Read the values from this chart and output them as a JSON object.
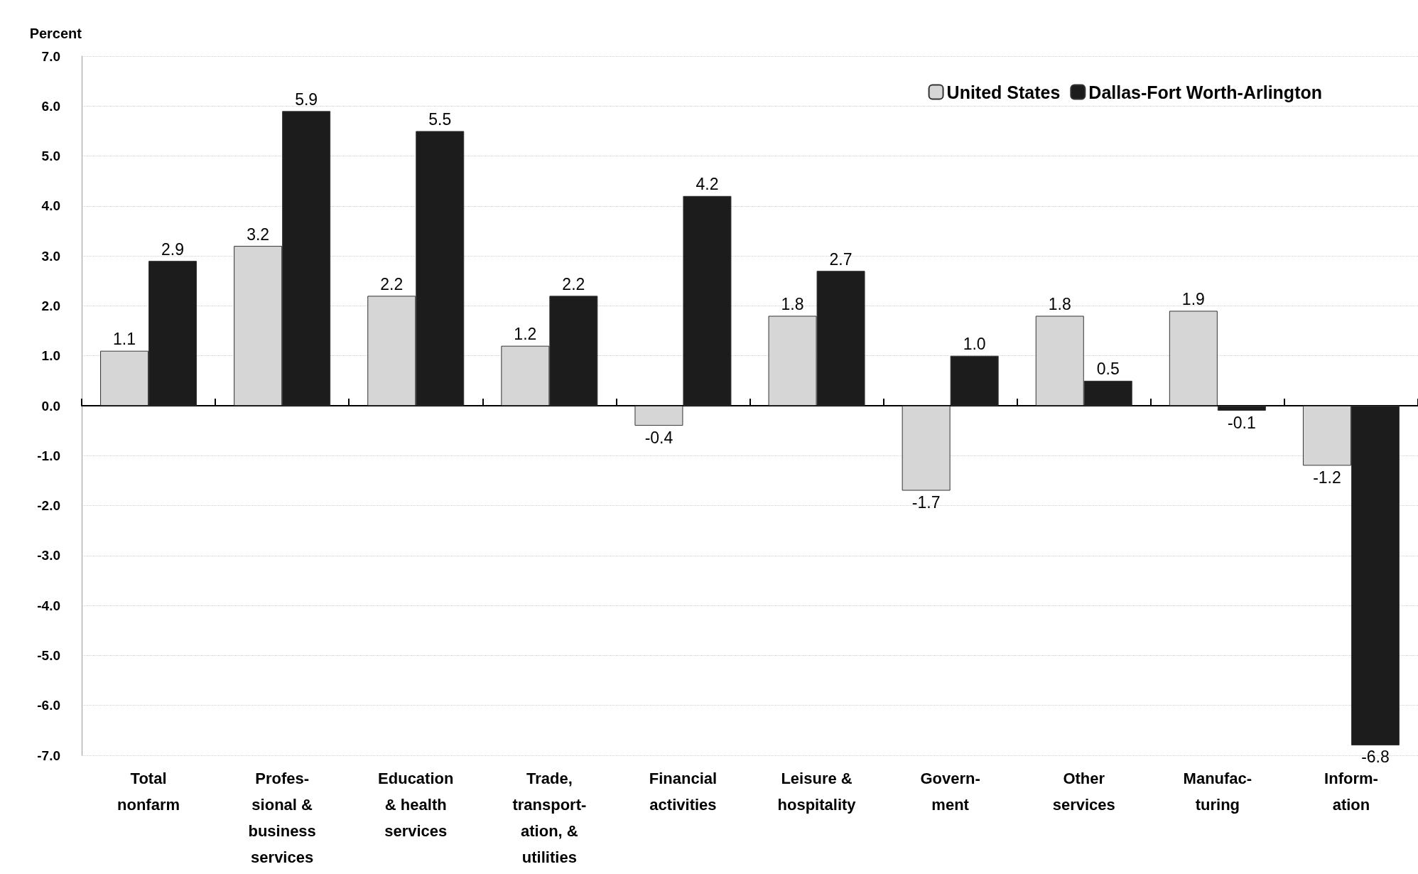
{
  "chart_data": {
    "type": "bar",
    "ylabel": "Percent",
    "categories": [
      "Total\nnonfarm",
      "Profes-\nsional &\nbusiness\nservices",
      "Education\n& health\nservices",
      "Trade,\ntransport-\nation, &\nutilities",
      "Financial\nactivities",
      "Leisure &\nhospitality",
      "Govern-\nment",
      "Other\nservices",
      "Manufac-\nturing",
      "Inform-\nation"
    ],
    "series": [
      {
        "name": "United States",
        "color": "#d6d6d6",
        "values": [
          1.1,
          3.2,
          2.2,
          1.2,
          -0.4,
          1.8,
          -1.7,
          1.8,
          1.9,
          -1.2
        ],
        "value_labels": [
          "1.1",
          "3.2",
          "2.2",
          "1.2",
          "-0.4",
          "1.8",
          "-1.7",
          "1.8",
          "1.9",
          "-1.2"
        ]
      },
      {
        "name": "Dallas-Fort Worth-Arlington",
        "color": "#1c1c1c",
        "values": [
          2.9,
          5.9,
          5.5,
          2.2,
          4.2,
          2.7,
          1.0,
          0.5,
          -0.1,
          -6.8
        ],
        "value_labels": [
          "2.9",
          "5.9",
          "5.5",
          "2.2",
          "4.2",
          "2.7",
          "1.0",
          "0.5",
          "-0.1",
          "-6.8"
        ]
      }
    ],
    "ylim": [
      -7,
      7
    ],
    "yticks": [
      {
        "value": -7,
        "label": "-7.0"
      },
      {
        "value": -6,
        "label": "-6.0"
      },
      {
        "value": -5,
        "label": "-5.0"
      },
      {
        "value": -4,
        "label": "-4.0"
      },
      {
        "value": -3,
        "label": "-3.0"
      },
      {
        "value": -2,
        "label": "-2.0"
      },
      {
        "value": -1,
        "label": "-1.0"
      },
      {
        "value": 0,
        "label": "0.0"
      },
      {
        "value": 1,
        "label": "1.0"
      },
      {
        "value": 2,
        "label": "2.0"
      },
      {
        "value": 3,
        "label": "3.0"
      },
      {
        "value": 4,
        "label": "4.0"
      },
      {
        "value": 5,
        "label": "5.0"
      },
      {
        "value": 6,
        "label": "6.0"
      },
      {
        "value": 7,
        "label": "7.0"
      }
    ],
    "grid": "y",
    "legend": "top right"
  }
}
